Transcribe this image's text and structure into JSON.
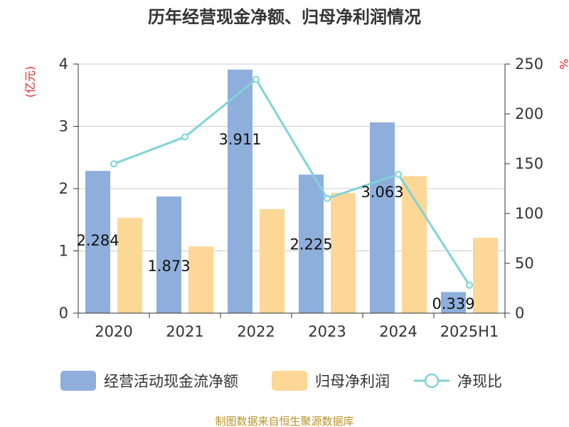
{
  "chart_data": {
    "type": "bar",
    "title": "历年经营现金净额、归母净利润情况",
    "categories": [
      "2020",
      "2021",
      "2022",
      "2023",
      "2024",
      "2025H1"
    ],
    "left_axis": {
      "unit": "(亿元)",
      "ylim": [
        0,
        4
      ],
      "ticks": [
        "0",
        "1",
        "2",
        "3",
        "4"
      ]
    },
    "right_axis": {
      "unit": "%",
      "ylim": [
        0,
        250
      ],
      "ticks": [
        "0",
        "50",
        "100",
        "150",
        "200",
        "250"
      ]
    },
    "grid": true,
    "legend_position": "bottom",
    "series": [
      {
        "name": "经营活动现金流净额",
        "type": "bar",
        "axis": "left",
        "color": "#8eaedb",
        "values": [
          2.284,
          1.873,
          3.911,
          2.225,
          3.063,
          0.339
        ],
        "labels": [
          "2.284",
          "1.873",
          "3.911",
          "2.225",
          "3.063",
          "0.339"
        ]
      },
      {
        "name": "归母净利润",
        "type": "bar",
        "axis": "left",
        "color": "#fdd796",
        "values": [
          1.53,
          1.07,
          1.67,
          1.93,
          2.2,
          1.21
        ]
      },
      {
        "name": "净现比",
        "type": "line",
        "axis": "right",
        "color": "#7fd3d8",
        "values": [
          149.8,
          176.8,
          234.6,
          115.1,
          139.3,
          28.0
        ]
      }
    ]
  },
  "source": "制图数据来自恒生聚源数据库",
  "colors": {
    "axis_unit": "#e0262b",
    "source": "#b8922a",
    "axis": "#333333",
    "grid": "#cccccc"
  }
}
